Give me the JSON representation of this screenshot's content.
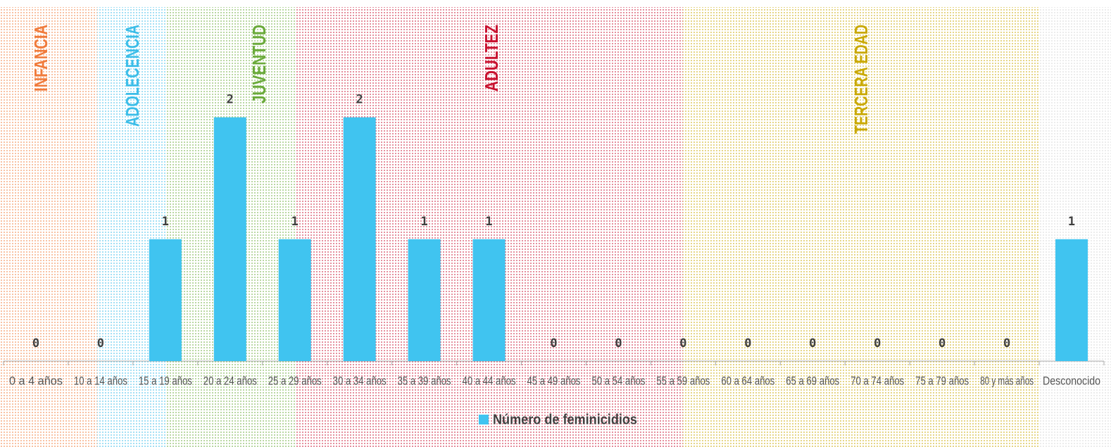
{
  "chart_data": {
    "type": "bar",
    "categories": [
      "0 a 4 años",
      "10 a 14 años",
      "15 a 19 años",
      "20 a 24 años",
      "25 a 29 años",
      "30 a 34 años",
      "35 a 39 años",
      "40 a 44 años",
      "45 a 49 años",
      "50 a 54 años",
      "55 a 59 años",
      "60 a 64 años",
      "65 a 69 años",
      "70 a 74 años",
      "75 a 79 años",
      "80 y más años",
      "Desconocido"
    ],
    "series": [
      {
        "name": "Número de feminicidios",
        "color": "#40c4f0",
        "values": [
          0,
          0,
          1,
          2,
          1,
          2,
          1,
          1,
          0,
          0,
          0,
          0,
          0,
          0,
          0,
          0,
          1
        ]
      }
    ],
    "ylim": [
      0,
      2.2
    ],
    "annotations": [
      {
        "text": "INFANCIA",
        "color": "#f07a3a"
      },
      {
        "text": "ADOLECENCIA",
        "color": "#3bbde8"
      },
      {
        "text": "JUVENTUD",
        "color": "#6aaa3a"
      },
      {
        "text": "ADULTEZ",
        "color": "#c8102e"
      },
      {
        "text": "TERCERA EDAD",
        "color": "#c9a800"
      }
    ],
    "legend": "bottom"
  }
}
